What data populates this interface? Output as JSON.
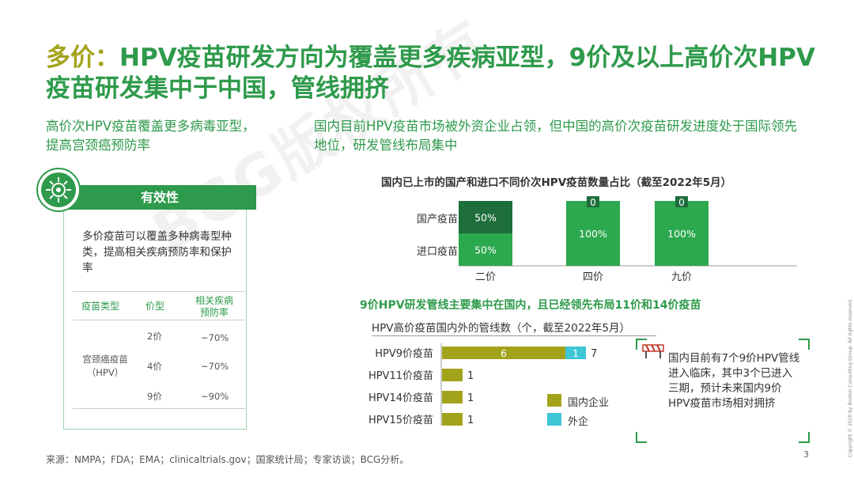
{
  "title": {
    "accent": "多价：",
    "text": "HPV疫苗研发方向为覆盖更多疾病亚型，9价及以上高价次HPV疫苗研发集中于中国，管线拥挤"
  },
  "left_subtitle": "高价次HPV疫苗覆盖更多病毒亚型，提高宫颈癌预防率",
  "right_subtitle": "国内目前HPV疫苗市场被外资企业占领，但中国的高价次疫苗研发进度处于国际领先地位，研发管线布局集中",
  "efficacy": {
    "header": "有效性",
    "description": "多价疫苗可以覆盖多种病毒型种类，提高相关疾病预防率和保护率",
    "table": {
      "col_type": "疫苗类型",
      "col_valence": "价型",
      "col_rate_1": "相关疾病",
      "col_rate_2": "预防率",
      "vaccine_name_1": "宫颈癌疫苗",
      "vaccine_name_2": "（HPV）",
      "rows": [
        {
          "valence": "2价",
          "rate": "~70%"
        },
        {
          "valence": "4价",
          "rate": "~70%"
        },
        {
          "valence": "9价",
          "rate": "~90%"
        }
      ]
    }
  },
  "chart_data": [
    {
      "type": "bar",
      "title": "国内已上市的国产和进口不同价次HPV疫苗数量占比（截至2022年5月）",
      "categories": [
        "二价",
        "四价",
        "九价"
      ],
      "series": [
        {
          "name": "国产疫苗",
          "values": [
            50,
            0,
            0
          ],
          "labels": [
            "50%",
            "0",
            "0"
          ],
          "color": "#1e6e3c"
        },
        {
          "name": "进口疫苗",
          "values": [
            50,
            100,
            100
          ],
          "labels": [
            "50%",
            "100%",
            "100%"
          ],
          "color": "#2ca84f"
        }
      ],
      "ylim": [
        0,
        100
      ]
    },
    {
      "type": "bar",
      "orientation": "horizontal",
      "title": "HPV高价疫苗国内外的管线数（个，截至2022年5月）",
      "categories": [
        "HPV9价疫苗",
        "HPV11价疫苗",
        "HPV14价疫苗",
        "HPV15价疫苗"
      ],
      "series": [
        {
          "name": "国内企业",
          "values": [
            6,
            1,
            1,
            1
          ],
          "color": "#a3a31b"
        },
        {
          "name": "外企",
          "values": [
            1,
            0,
            0,
            0
          ],
          "color": "#3ec6d6"
        }
      ],
      "totals": [
        7,
        1,
        1,
        1
      ],
      "xlim": [
        0,
        7
      ]
    }
  ],
  "pipeline_subtitle": "9价HPV研发管线主要集中在国内，且已经领先布局11价和14价疫苗",
  "note": "国内目前有7个9价HPV管线进入临床，其中3个已进入三期，预计未来国内9价HPV疫苗市场相对拥挤",
  "watermark": "BCG版权所有",
  "source": "来源：NMPA；FDA；EMA；clinicaltrials.gov；国家统计局；专家访谈；BCG分析。",
  "page_number": "3",
  "copyright": "Copyright © 2020 by Boston Consulting Group. All rights reserved."
}
